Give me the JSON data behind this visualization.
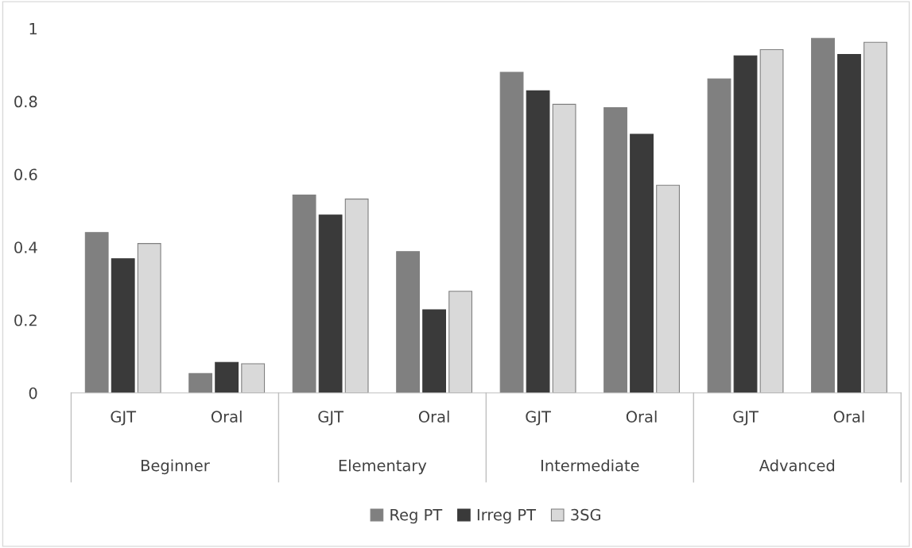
{
  "chart_data": {
    "type": "bar",
    "categories": [
      "GJT",
      "Oral",
      "GJT",
      "Oral",
      "GJT",
      "Oral",
      "GJT",
      "Oral"
    ],
    "annotations": [
      "Beginner",
      "Elementary",
      "Intermediate",
      "Advanced"
    ],
    "series": [
      {
        "name": "Reg PT",
        "color": "#808080",
        "values": [
          0.44,
          0.053,
          0.543,
          0.388,
          0.88,
          0.783,
          0.862,
          0.973
        ]
      },
      {
        "name": "Irreg PT",
        "color": "#3a3a3a",
        "values": [
          0.368,
          0.084,
          0.488,
          0.228,
          0.829,
          0.71,
          0.925,
          0.929
        ]
      },
      {
        "name": "3SG",
        "color": "#d9d9d9",
        "values": [
          0.41,
          0.08,
          0.532,
          0.279,
          0.792,
          0.57,
          0.942,
          0.962
        ]
      }
    ],
    "ylim": [
      0,
      1
    ],
    "yticks": [
      0,
      0.2,
      0.4,
      0.6,
      0.8,
      1
    ],
    "grid": false,
    "legend": "bottom"
  }
}
